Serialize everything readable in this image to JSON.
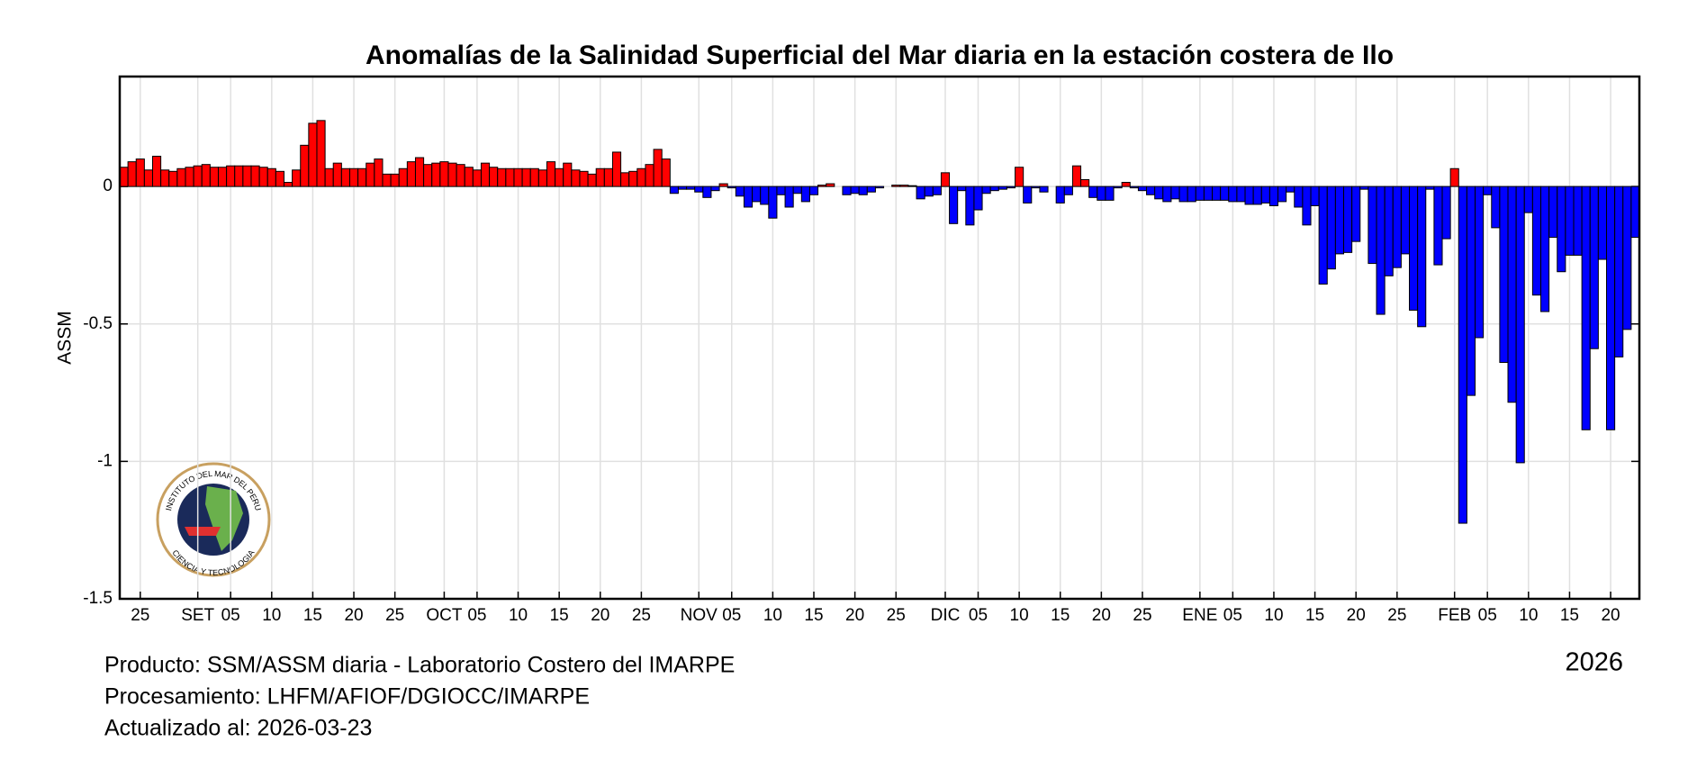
{
  "chart_data": {
    "type": "bar",
    "title": "Anomalías de la Salinidad Superficial del Mar diaria en la estación costera de Ilo",
    "ylabel": "ASSM",
    "year_label": "2026",
    "footer": [
      "Producto: SSM/ASSM diaria - Laboratorio Costero del IMARPE",
      "Procesamiento: LHFM/AFIOF/DGIOCC/IMARPE",
      "Actualizado al: 2026-03-23"
    ],
    "logo_text": [
      "INSTITUTO DEL MAR DEL PERU",
      "CIENCIA Y TECNOLOGIA"
    ],
    "ylim": [
      -1.5,
      0.4
    ],
    "yticks": [
      0,
      -0.5,
      -1,
      -1.5
    ],
    "grid": true,
    "positive_color": "#ff0000",
    "negative_color": "#0000ff",
    "categories": [
      null,
      null,
      "25",
      null,
      null,
      null,
      null,
      null,
      null,
      "SET",
      null,
      null,
      null,
      "05",
      null,
      null,
      null,
      null,
      "10",
      null,
      null,
      null,
      null,
      "15",
      null,
      null,
      null,
      null,
      "20",
      null,
      null,
      null,
      null,
      "25",
      null,
      null,
      null,
      null,
      null,
      "OCT",
      null,
      null,
      null,
      "05",
      null,
      null,
      null,
      null,
      "10",
      null,
      null,
      null,
      null,
      "15",
      null,
      null,
      null,
      null,
      "20",
      null,
      null,
      null,
      null,
      "25",
      null,
      null,
      null,
      null,
      null,
      null,
      "NOV",
      null,
      null,
      null,
      "05",
      null,
      null,
      null,
      null,
      "10",
      null,
      null,
      null,
      null,
      "15",
      null,
      null,
      null,
      null,
      "20",
      null,
      null,
      null,
      null,
      "25",
      null,
      null,
      null,
      null,
      null,
      "DIC",
      null,
      null,
      null,
      "05",
      null,
      null,
      null,
      null,
      "10",
      null,
      null,
      null,
      null,
      "15",
      null,
      null,
      null,
      null,
      "20",
      null,
      null,
      null,
      null,
      "25",
      null,
      null,
      null,
      null,
      null,
      null,
      "ENE",
      null,
      null,
      null,
      "05",
      null,
      null,
      null,
      null,
      "10",
      null,
      null,
      null,
      null,
      "15",
      null,
      null,
      null,
      null,
      "20",
      null,
      null,
      null,
      null,
      "25",
      null,
      null,
      null,
      null,
      null,
      null,
      "FEB",
      null,
      null,
      null,
      "05",
      null,
      null,
      null,
      null,
      "10",
      null,
      null,
      null,
      null,
      "15",
      null,
      null,
      null,
      null,
      "20",
      null,
      null,
      null
    ],
    "values": [
      0.07,
      0.09,
      0.1,
      0.06,
      0.11,
      0.06,
      0.055,
      0.065,
      0.07,
      0.075,
      0.08,
      0.07,
      0.07,
      0.075,
      0.075,
      0.075,
      0.075,
      0.07,
      0.065,
      0.055,
      0.015,
      0.06,
      0.15,
      0.23,
      0.24,
      0.065,
      0.085,
      0.065,
      0.065,
      0.065,
      0.085,
      0.1,
      0.045,
      0.045,
      0.065,
      0.09,
      0.105,
      0.08,
      0.085,
      0.09,
      0.085,
      0.08,
      0.07,
      0.06,
      0.085,
      0.07,
      0.065,
      0.065,
      0.065,
      0.065,
      0.065,
      0.06,
      0.09,
      0.065,
      0.085,
      0.06,
      0.055,
      0.045,
      0.065,
      0.065,
      0.125,
      0.05,
      0.055,
      0.065,
      0.08,
      0.135,
      0.1,
      -0.025,
      -0.01,
      -0.01,
      -0.02,
      -0.04,
      -0.015,
      0.01,
      -0.005,
      -0.035,
      -0.075,
      -0.055,
      -0.065,
      -0.115,
      -0.03,
      -0.075,
      -0.025,
      -0.055,
      -0.03,
      0.005,
      0.01,
      0,
      -0.03,
      -0.025,
      -0.03,
      -0.02,
      -0.005,
      0,
      0.005,
      0.005,
      0.003,
      -0.045,
      -0.035,
      -0.03,
      0.05,
      -0.135,
      -0.015,
      -0.14,
      -0.085,
      -0.025,
      -0.015,
      -0.01,
      -0.005,
      0.07,
      -0.06,
      -0.005,
      -0.02,
      0,
      -0.06,
      -0.03,
      0.075,
      0.025,
      -0.04,
      -0.05,
      -0.05,
      -0.005,
      0.015,
      -0.005,
      -0.015,
      -0.03,
      -0.045,
      -0.055,
      -0.045,
      -0.055,
      -0.055,
      -0.05,
      -0.05,
      -0.05,
      -0.05,
      -0.055,
      -0.055,
      -0.065,
      -0.065,
      -0.06,
      -0.07,
      -0.055,
      -0.02,
      -0.075,
      -0.14,
      -0.07,
      -0.355,
      -0.3,
      -0.245,
      -0.24,
      -0.2,
      -0.01,
      -0.28,
      -0.465,
      -0.325,
      -0.295,
      -0.245,
      -0.45,
      -0.51,
      -0.01,
      -0.285,
      -0.19,
      0.065,
      -1.225,
      -0.76,
      -0.55,
      -0.03,
      -0.15,
      -0.64,
      -0.785,
      -1.005,
      -0.095,
      -0.395,
      -0.455,
      -0.185,
      -0.31,
      -0.25,
      -0.25,
      -0.885,
      -0.59,
      -0.265,
      -0.885,
      -0.62,
      -0.52,
      -0.185
    ]
  }
}
